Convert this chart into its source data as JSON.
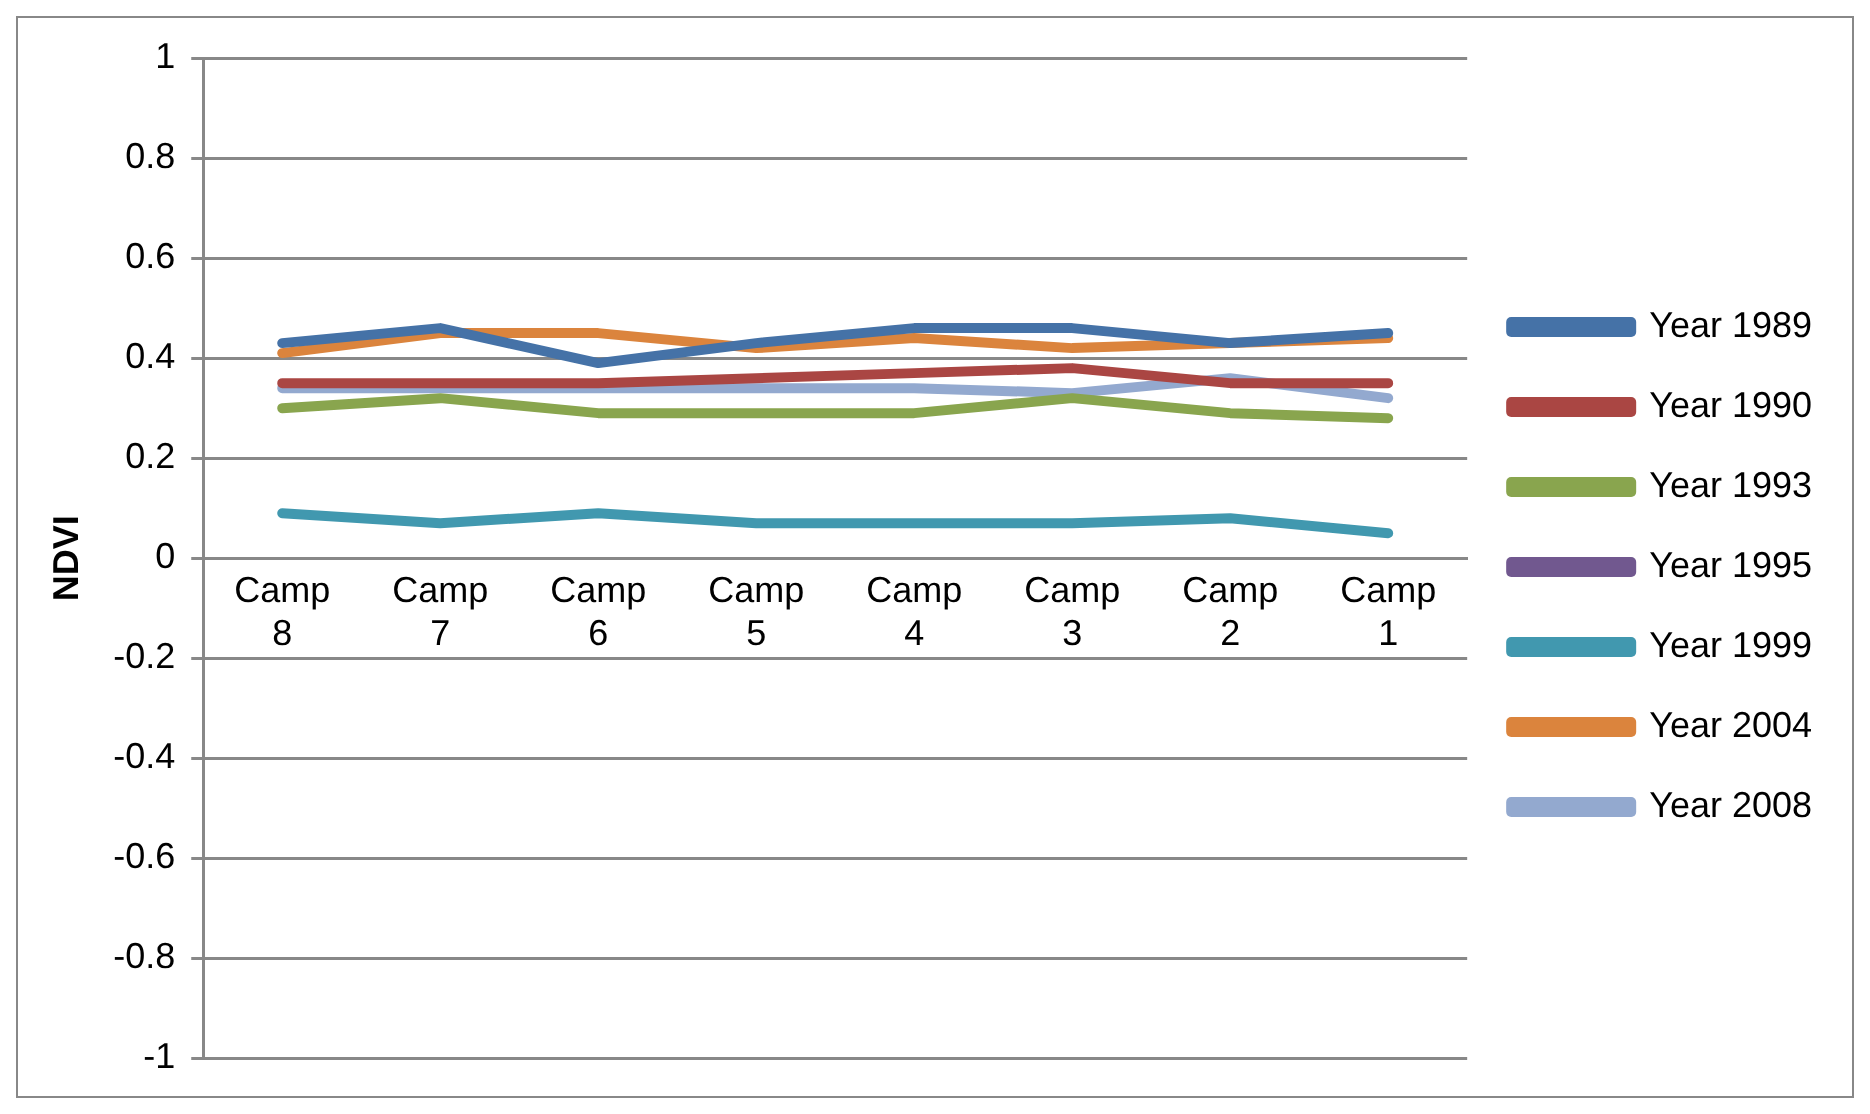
{
  "chart_data": {
    "type": "line",
    "ylabel": "NDVI",
    "categories": [
      "Camp 8",
      "Camp 7",
      "Camp 6",
      "Camp 5",
      "Camp 4",
      "Camp 3",
      "Camp 2",
      "Camp 1"
    ],
    "series": [
      {
        "name": "Year 1989",
        "color": "#4572a7",
        "values": [
          0.43,
          0.46,
          0.39,
          0.43,
          0.46,
          0.46,
          0.43,
          0.45
        ]
      },
      {
        "name": "Year 1990",
        "color": "#aa4643",
        "values": [
          0.35,
          0.35,
          0.35,
          0.36,
          0.37,
          0.38,
          0.35,
          0.35
        ]
      },
      {
        "name": "Year 1993",
        "color": "#89a54e",
        "values": [
          0.3,
          0.32,
          0.29,
          0.29,
          0.29,
          0.32,
          0.29,
          0.28
        ]
      },
      {
        "name": "Year 1995",
        "color": "#71588f",
        "values": [
          null,
          null,
          null,
          null,
          null,
          null,
          null,
          null
        ]
      },
      {
        "name": "Year 1999",
        "color": "#4198af",
        "values": [
          0.09,
          0.07,
          0.09,
          0.07,
          0.07,
          0.07,
          0.08,
          0.05
        ]
      },
      {
        "name": "Year 2004",
        "color": "#db843d",
        "values": [
          0.41,
          0.45,
          0.45,
          0.42,
          0.44,
          0.42,
          0.43,
          0.44
        ]
      },
      {
        "name": "Year 2008",
        "color": "#93a9cf",
        "values": [
          0.34,
          0.34,
          0.34,
          0.34,
          0.34,
          0.33,
          0.36,
          0.32
        ]
      }
    ],
    "ylim": [
      -1,
      1
    ],
    "yticks": [
      -1,
      -0.8,
      -0.6,
      -0.4,
      -0.2,
      0,
      0.2,
      0.4,
      0.6,
      0.8,
      1
    ],
    "grid": "y",
    "legend": "right",
    "marker": "none",
    "line_style": "solid"
  }
}
